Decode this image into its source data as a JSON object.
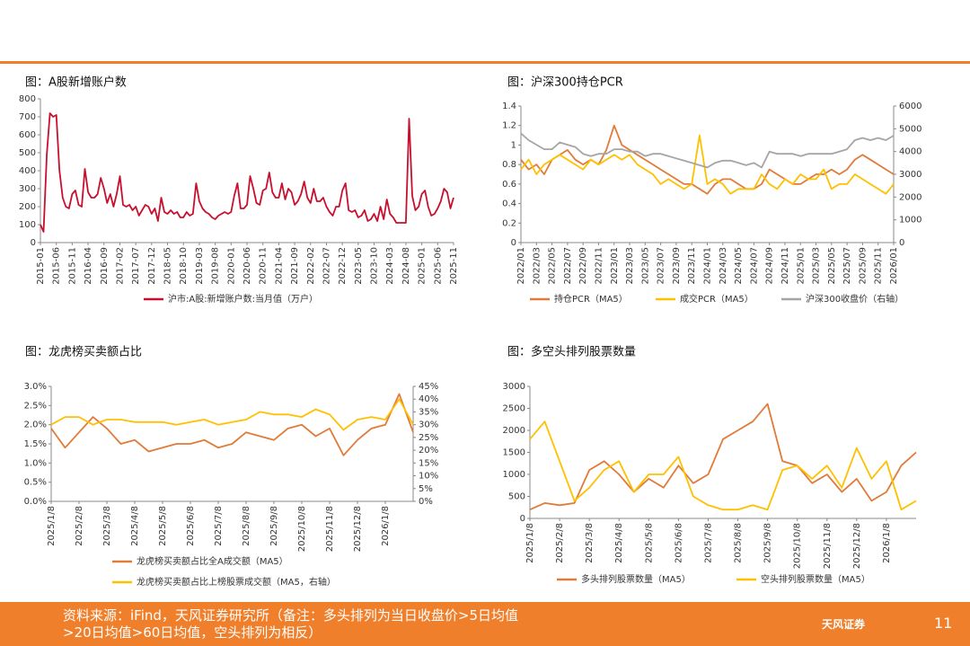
{
  "chart_data": [
    {
      "type": "line",
      "title": "图：A股新增账户数",
      "categories": [
        "2015-01",
        null,
        null,
        null,
        null,
        "2015-06",
        null,
        null,
        null,
        null,
        "2015-11",
        null,
        null,
        null,
        null,
        "2016-04",
        null,
        null,
        null,
        null,
        "2016-09",
        null,
        null,
        null,
        null,
        "2017-02",
        null,
        null,
        null,
        null,
        "2017-07",
        null,
        null,
        null,
        null,
        "2017-12",
        null,
        null,
        null,
        null,
        "2018-05",
        null,
        null,
        null,
        null,
        "2018-10",
        null,
        null,
        null,
        null,
        "2019-03",
        null,
        null,
        null,
        null,
        "2019-08",
        null,
        null,
        null,
        null,
        "2020-01",
        null,
        null,
        null,
        null,
        "2020-06",
        null,
        null,
        null,
        null,
        "2020-11",
        null,
        null,
        null,
        null,
        "2021-04",
        null,
        null,
        null,
        null,
        "2021-09",
        null,
        null,
        null,
        null,
        "2022-02",
        null,
        null,
        null,
        null,
        "2022-07",
        null,
        null,
        null,
        null,
        "2022-12",
        null,
        null,
        null,
        null,
        "2023-05",
        null,
        null,
        null,
        null,
        "2023-10",
        null,
        null,
        null,
        null,
        "2024-03",
        null,
        null,
        null,
        null,
        "2024-08",
        null,
        null,
        null,
        null,
        "2025-01",
        null,
        null,
        null,
        null,
        "2025-06",
        null,
        null,
        null,
        null,
        "2025-11"
      ],
      "series": [
        {
          "name": "沪市:A股:新增账户数:当月值（万户）",
          "color": "#c8102e",
          "values": [
            100,
            60,
            490,
            720,
            700,
            710,
            400,
            250,
            200,
            190,
            270,
            290,
            210,
            200,
            410,
            280,
            250,
            250,
            270,
            360,
            300,
            220,
            270,
            200,
            270,
            370,
            210,
            200,
            210,
            180,
            200,
            150,
            180,
            210,
            200,
            160,
            190,
            120,
            250,
            170,
            160,
            180,
            160,
            170,
            140,
            140,
            170,
            150,
            160,
            330,
            230,
            190,
            170,
            160,
            140,
            130,
            150,
            160,
            170,
            160,
            170,
            260,
            330,
            190,
            190,
            210,
            370,
            300,
            220,
            210,
            290,
            300,
            390,
            280,
            250,
            250,
            330,
            240,
            300,
            280,
            210,
            230,
            270,
            340,
            250,
            220,
            300,
            230,
            230,
            250,
            200,
            170,
            150,
            200,
            200,
            290,
            330,
            180,
            170,
            180,
            140,
            150,
            180,
            120,
            130,
            160,
            120,
            200,
            130,
            240,
            160,
            140,
            110,
            110,
            110,
            110,
            690,
            260,
            180,
            200,
            270,
            290,
            200,
            150,
            160,
            190,
            230,
            300,
            280,
            190,
            250
          ]
        }
      ],
      "ylim": [
        0,
        800
      ],
      "yticks": [
        0,
        100,
        200,
        300,
        400,
        500,
        600,
        700,
        800
      ]
    },
    {
      "type": "line",
      "title": "图：沪深300持仓PCR",
      "categories": [
        "2022/01",
        null,
        "2022/03",
        null,
        "2022/05",
        null,
        "2022/07",
        null,
        "2022/09",
        null,
        "2022/11",
        null,
        "2023/01",
        null,
        "2023/03",
        null,
        "2023/05",
        null,
        "2023/07",
        null,
        "2023/09",
        null,
        "2023/11",
        null,
        "2024/01",
        null,
        "2024/03",
        null,
        "2024/05",
        null,
        "2024/07",
        null,
        "2024/09",
        null,
        "2024/11",
        null,
        "2025/01",
        null,
        "2025/03",
        null,
        "2025/05",
        null,
        "2025/07",
        null,
        "2025/09",
        null,
        "2025/11",
        null,
        "2026/01"
      ],
      "series": [
        {
          "name": "持仓PCR（MA5）",
          "color": "#e07b39",
          "values": [
            0.85,
            0.75,
            0.8,
            0.7,
            0.85,
            0.9,
            0.95,
            0.85,
            0.8,
            0.85,
            0.8,
            0.95,
            1.2,
            1.0,
            0.95,
            0.9,
            0.85,
            0.8,
            0.75,
            0.7,
            0.65,
            0.6,
            0.6,
            0.55,
            0.5,
            0.6,
            0.65,
            0.65,
            0.6,
            0.55,
            0.55,
            0.6,
            0.75,
            0.7,
            0.65,
            0.6,
            0.6,
            0.65,
            0.7,
            0.7,
            0.75,
            0.7,
            0.75,
            0.85,
            0.9,
            0.85,
            0.8,
            0.75,
            0.7
          ]
        },
        {
          "name": "成交PCR（MA5）",
          "color": "#ffc000",
          "values": [
            0.75,
            0.85,
            0.7,
            0.8,
            0.85,
            0.9,
            0.85,
            0.8,
            0.75,
            0.85,
            0.8,
            0.85,
            0.9,
            0.85,
            0.9,
            0.8,
            0.75,
            0.7,
            0.6,
            0.65,
            0.6,
            0.55,
            0.6,
            1.1,
            0.6,
            0.65,
            0.6,
            0.5,
            0.55,
            0.55,
            0.55,
            0.7,
            0.6,
            0.55,
            0.65,
            0.6,
            0.7,
            0.65,
            0.65,
            0.75,
            0.55,
            0.6,
            0.6,
            0.7,
            0.65,
            0.6,
            0.55,
            0.5,
            0.6
          ]
        },
        {
          "name": "沪深300收盘价（右轴）",
          "color": "#a5a5a5",
          "axis": "y2",
          "values": [
            4800,
            4500,
            4300,
            4100,
            4100,
            4400,
            4300,
            4200,
            3900,
            3800,
            3900,
            3900,
            4100,
            4100,
            4000,
            4000,
            3800,
            3900,
            3900,
            3800,
            3700,
            3600,
            3500,
            3400,
            3300,
            3500,
            3600,
            3600,
            3500,
            3400,
            3500,
            3300,
            4000,
            3900,
            3900,
            3900,
            3800,
            3900,
            3900,
            3900,
            3900,
            4000,
            4100,
            4500,
            4600,
            4500,
            4600,
            4500,
            4700
          ]
        }
      ],
      "ylim": [
        0,
        1.4
      ],
      "yticks": [
        0,
        0.2,
        0.4,
        0.6,
        0.8,
        1,
        1.2,
        1.4
      ],
      "y2lim": [
        0,
        6000
      ],
      "y2ticks": [
        0,
        1000,
        2000,
        3000,
        4000,
        5000,
        6000
      ]
    },
    {
      "type": "line",
      "title": "图：龙虎榜买卖额占比",
      "categories": [
        "2025/1/8",
        null,
        "2025/2/8",
        null,
        "2025/3/8",
        null,
        "2025/4/8",
        null,
        "2025/5/8",
        null,
        "2025/6/8",
        null,
        "2025/7/8",
        null,
        "2025/8/8",
        null,
        "2025/9/8",
        null,
        "2025/10/8",
        null,
        "2025/11/8",
        null,
        "2025/12/8",
        null,
        "2026/1/8",
        null,
        null
      ],
      "series": [
        {
          "name": "龙虎榜买卖额占比全A成交额（MA5）",
          "color": "#e07b39",
          "values": [
            1.9,
            1.4,
            1.8,
            2.2,
            1.9,
            1.5,
            1.6,
            1.3,
            1.4,
            1.5,
            1.5,
            1.6,
            1.4,
            1.5,
            1.8,
            1.7,
            1.6,
            1.9,
            2.0,
            1.7,
            1.9,
            1.2,
            1.6,
            1.9,
            2.0,
            2.8,
            1.8
          ]
        },
        {
          "name": "龙虎榜买卖额占比上榜股票成交额（MA5，右轴）",
          "color": "#ffc000",
          "axis": "y2",
          "values": [
            30,
            33,
            33,
            30,
            32,
            32,
            31,
            31,
            31,
            30,
            31,
            32,
            30,
            31,
            32,
            35,
            34,
            34,
            33,
            36,
            34,
            28,
            32,
            33,
            32,
            40,
            30
          ]
        }
      ],
      "ylim": [
        0,
        3
      ],
      "yticks": [
        {
          "value": 0,
          "label": "0.0%"
        },
        {
          "value": 0.5,
          "label": "0.5%"
        },
        {
          "value": 1,
          "label": "1.0%"
        },
        {
          "value": 1.5,
          "label": "1.5%"
        },
        {
          "value": 2,
          "label": "2.0%"
        },
        {
          "value": 2.5,
          "label": "2.5%"
        },
        {
          "value": 3,
          "label": "3.0%"
        }
      ],
      "y2lim": [
        0,
        45
      ],
      "y2ticks": [
        {
          "value": 0,
          "label": "0%"
        },
        {
          "value": 5,
          "label": "5%"
        },
        {
          "value": 10,
          "label": "10%"
        },
        {
          "value": 15,
          "label": "15%"
        },
        {
          "value": 20,
          "label": "20%"
        },
        {
          "value": 25,
          "label": "25%"
        },
        {
          "value": 30,
          "label": "30%"
        },
        {
          "value": 35,
          "label": "35%"
        },
        {
          "value": 40,
          "label": "40%"
        },
        {
          "value": 45,
          "label": "45%"
        }
      ]
    },
    {
      "type": "line",
      "title": "图：多空头排列股票数量",
      "categories": [
        "2025/1/8",
        null,
        "2025/2/8",
        null,
        "2025/3/8",
        null,
        "2025/4/8",
        null,
        "2025/5/8",
        null,
        "2025/6/8",
        null,
        "2025/7/8",
        null,
        "2025/8/8",
        null,
        "2025/9/8",
        null,
        "2025/10/8",
        null,
        "2025/11/8",
        null,
        "2025/12/8",
        null,
        "2026/1/8",
        null,
        null
      ],
      "series": [
        {
          "name": "多头排列股票数量（MA5）",
          "color": "#e07b39",
          "values": [
            200,
            350,
            300,
            350,
            1100,
            1300,
            1000,
            600,
            900,
            700,
            1200,
            800,
            1000,
            1800,
            2000,
            2200,
            2600,
            1300,
            1200,
            800,
            1000,
            600,
            900,
            400,
            600,
            1200,
            1500
          ]
        },
        {
          "name": "空头排列股票数量（MA5）",
          "color": "#ffc000",
          "values": [
            1800,
            2200,
            1300,
            400,
            700,
            1100,
            1300,
            600,
            1000,
            1000,
            1400,
            500,
            300,
            200,
            200,
            300,
            200,
            1100,
            1200,
            900,
            1200,
            700,
            1600,
            900,
            1300,
            200,
            400
          ]
        }
      ],
      "ylim": [
        0,
        3000
      ],
      "yticks": [
        0,
        500,
        1000,
        1500,
        2000,
        2500,
        3000
      ]
    }
  ],
  "footer": {
    "source_line1": "资料来源：iFind，天风证券研究所（备注：多头排列为当日收盘价>5日均值",
    "source_line2": ">20日均值>60日均值，空头排列为相反）",
    "logo": "天风证券",
    "page_number": "11"
  }
}
